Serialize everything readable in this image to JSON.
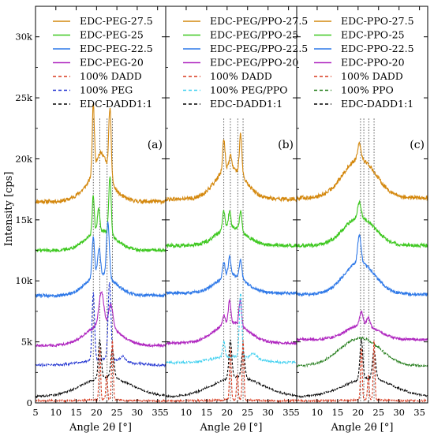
{
  "chart_data": [
    {
      "type": "line",
      "panel_label": "(a)",
      "xlabel": "Angle 2θ [°]",
      "ylabel": "Intensity [cps]",
      "xlim": [
        5,
        37
      ],
      "ylim": [
        0,
        32500
      ],
      "x_ticks": [
        "5",
        "10",
        "15",
        "20",
        "25",
        "30",
        "35"
      ],
      "y_ticks": [
        "0",
        "5k",
        "10k",
        "15k",
        "20k",
        "25k",
        "30k"
      ],
      "reference_lines_x": [
        19.2,
        20.8,
        22.6,
        23.9
      ],
      "legend": [
        "EDC-PEG-27.5",
        "EDC-PEG-25",
        "EDC-PEG-22.5",
        "EDC-PEG-20",
        "100% DADD",
        "100% PEG",
        "EDC-DADD1:1"
      ],
      "series": [
        {
          "name": "EDC-PEG-27.5",
          "color": "#d4880e",
          "style": "solid",
          "baseline": 16500,
          "peaks": [
            [
              19.2,
              5500,
              0.25
            ],
            [
              23.3,
              5500,
              0.3
            ],
            [
              21.2,
              2200,
              1.5
            ]
          ],
          "bump": [
            20.5,
            1800,
            3.5
          ]
        },
        {
          "name": "EDC-PEG-25",
          "color": "#3ec820",
          "style": "solid",
          "baseline": 12500,
          "peaks": [
            [
              19.2,
              3100,
              0.25
            ],
            [
              20.5,
              1800,
              0.3
            ],
            [
              23.3,
              4700,
              0.3
            ]
          ],
          "bump": [
            21,
            1600,
            3.5
          ]
        },
        {
          "name": "EDC-PEG-22.5",
          "color": "#2f79e8",
          "style": "solid",
          "baseline": 8800,
          "peaks": [
            [
              19.2,
              3300,
              0.3
            ],
            [
              20.6,
              2200,
              0.35
            ],
            [
              22.8,
              4500,
              0.35
            ]
          ],
          "bump": [
            21,
            1700,
            3.5
          ]
        },
        {
          "name": "EDC-PEG-20",
          "color": "#b028c0",
          "style": "solid",
          "baseline": 4700,
          "peaks": [
            [
              21.2,
              2700,
              0.6
            ],
            [
              23.5,
              1900,
              0.5
            ]
          ],
          "bump": [
            21.5,
            1700,
            4
          ]
        },
        {
          "name": "100% PEG",
          "color": "#1c2fd0",
          "style": "dashed",
          "baseline": 3100,
          "peaks": [
            [
              19.2,
              5500,
              0.3
            ],
            [
              23.2,
              6300,
              0.35
            ],
            [
              26.5,
              350,
              0.6
            ]
          ],
          "bump": [
            22,
            500,
            5
          ]
        },
        {
          "name": "EDC-DADD1:1",
          "color": "#000000",
          "style": "dashed",
          "baseline": 500,
          "peaks": [
            [
              20.8,
              3100,
              0.35
            ],
            [
              23.9,
              2300,
              0.4
            ]
          ],
          "bump": [
            22.5,
            1600,
            6
          ]
        },
        {
          "name": "100% DADD",
          "color": "#d83a1e",
          "style": "dashed",
          "baseline": 180,
          "peaks": [
            [
              20.8,
              4300,
              0.2
            ],
            [
              22.5,
              2000,
              0.2
            ],
            [
              23.9,
              4900,
              0.2
            ]
          ],
          "bump": [
            22,
            100,
            3
          ]
        }
      ]
    },
    {
      "type": "line",
      "panel_label": "(b)",
      "xlabel": "Angle 2θ [°]",
      "xlim": [
        5,
        37
      ],
      "ylim": [
        0,
        32500
      ],
      "x_ticks": [
        "5",
        "10",
        "15",
        "20",
        "25",
        "30",
        "35"
      ],
      "reference_lines_x": [
        19.2,
        20.8,
        22.6,
        23.9
      ],
      "legend": [
        "EDC-PEG/PPO-27.5",
        "EDC-PEG/PPO-25",
        "EDC-PEG/PPO-22.5",
        "EDC-PEG/PPO-20",
        "100% DADD",
        "100% PEG/PPO",
        "EDC-DADD1:1"
      ],
      "series": [
        {
          "name": "EDC-PEG/PPO-27.5",
          "color": "#d4880e",
          "style": "solid",
          "baseline": 16700,
          "peaks": [
            [
              19.2,
              2500,
              0.3
            ],
            [
              20.8,
              1000,
              0.3
            ],
            [
              23.3,
              3300,
              0.3
            ]
          ],
          "bump": [
            20.8,
            2600,
            3.5
          ]
        },
        {
          "name": "EDC-PEG/PPO-25",
          "color": "#3ec820",
          "style": "solid",
          "baseline": 12900,
          "peaks": [
            [
              19.2,
              1500,
              0.3
            ],
            [
              20.6,
              1300,
              0.3
            ],
            [
              23.3,
              1600,
              0.3
            ]
          ],
          "bump": [
            21,
            1500,
            3.5
          ]
        },
        {
          "name": "EDC-PEG/PPO-22.5",
          "color": "#2f79e8",
          "style": "solid",
          "baseline": 9000,
          "peaks": [
            [
              19.2,
              1200,
              0.3
            ],
            [
              20.6,
              1500,
              0.3
            ],
            [
              23.3,
              1500,
              0.3
            ]
          ],
          "bump": [
            21,
            1500,
            3.5
          ]
        },
        {
          "name": "EDC-PEG/PPO-20",
          "color": "#b028c0",
          "style": "solid",
          "baseline": 4900,
          "peaks": [
            [
              19.2,
              800,
              0.3
            ],
            [
              20.6,
              1800,
              0.3
            ],
            [
              23.2,
              2100,
              0.3
            ]
          ],
          "bump": [
            21,
            1700,
            4
          ]
        },
        {
          "name": "100% PEG/PPO",
          "color": "#3fd0f0",
          "style": "dashed",
          "baseline": 3300,
          "peaks": [
            [
              19.2,
              1300,
              0.3
            ],
            [
              23.3,
              5300,
              0.3
            ],
            [
              26.5,
              400,
              0.8
            ]
          ],
          "bump": [
            21.5,
            500,
            5
          ]
        },
        {
          "name": "EDC-DADD1:1",
          "color": "#000000",
          "style": "dashed",
          "baseline": 500,
          "peaks": [
            [
              20.8,
              3100,
              0.35
            ],
            [
              23.9,
              2200,
              0.4
            ]
          ],
          "bump": [
            22.5,
            1600,
            6
          ]
        },
        {
          "name": "100% DADD",
          "color": "#d83a1e",
          "style": "dashed",
          "baseline": 180,
          "peaks": [
            [
              20.8,
              4300,
              0.2
            ],
            [
              22.5,
              2000,
              0.2
            ],
            [
              23.9,
              4900,
              0.2
            ]
          ],
          "bump": [
            22,
            100,
            3
          ]
        }
      ]
    },
    {
      "type": "line",
      "panel_label": "(c)",
      "xlabel": "Angle 2θ [°]",
      "xlim": [
        5,
        37
      ],
      "ylim": [
        0,
        32500
      ],
      "x_ticks": [
        "5",
        "10",
        "15",
        "20",
        "25",
        "30",
        "35"
      ],
      "reference_lines_x": [
        20.6,
        21.4,
        22.6,
        23.9
      ],
      "legend": [
        "EDC-PPO-27.5",
        "EDC-PPO-25",
        "EDC-PPO-22.5",
        "EDC-PPO-20",
        "100% DADD",
        "100% PPO",
        "EDC-DADD1:1"
      ],
      "series": [
        {
          "name": "EDC-PPO-27.5",
          "color": "#d4880e",
          "style": "solid",
          "baseline": 16800,
          "peaks": [
            [
              20.3,
              1300,
              0.4
            ]
          ],
          "bump": [
            20.3,
            3200,
            4
          ]
        },
        {
          "name": "EDC-PPO-25",
          "color": "#3ec820",
          "style": "solid",
          "baseline": 12900,
          "peaks": [
            [
              20.3,
              1200,
              0.4
            ]
          ],
          "bump": [
            20.3,
            2300,
            3.8
          ]
        },
        {
          "name": "EDC-PPO-22.5",
          "color": "#2f79e8",
          "style": "solid",
          "baseline": 8900,
          "peaks": [
            [
              20.3,
              2200,
              0.4
            ]
          ],
          "bump": [
            20.3,
            2600,
            3.8
          ]
        },
        {
          "name": "EDC-PPO-20",
          "color": "#b028c0",
          "style": "solid",
          "baseline": 5200,
          "peaks": [
            [
              20.8,
              1100,
              0.4
            ],
            [
              22.5,
              700,
              0.4
            ]
          ],
          "bump": [
            21,
            1200,
            3.8
          ]
        },
        {
          "name": "100% PPO",
          "color": "#1f7a16",
          "style": "dashed",
          "baseline": 3000,
          "peaks": [],
          "bump": [
            20.5,
            2300,
            5
          ]
        },
        {
          "name": "EDC-DADD1:1",
          "color": "#000000",
          "style": "dashed",
          "baseline": 500,
          "peaks": [
            [
              20.8,
              3200,
              0.35
            ],
            [
              23.9,
              2300,
              0.4
            ]
          ],
          "bump": [
            22.5,
            1500,
            6
          ]
        },
        {
          "name": "100% DADD",
          "color": "#d83a1e",
          "style": "dashed",
          "baseline": 180,
          "peaks": [
            [
              20.8,
              4300,
              0.2
            ],
            [
              22.5,
              2000,
              0.2
            ],
            [
              23.9,
              4900,
              0.2
            ]
          ],
          "bump": [
            22,
            100,
            3
          ]
        }
      ]
    }
  ]
}
